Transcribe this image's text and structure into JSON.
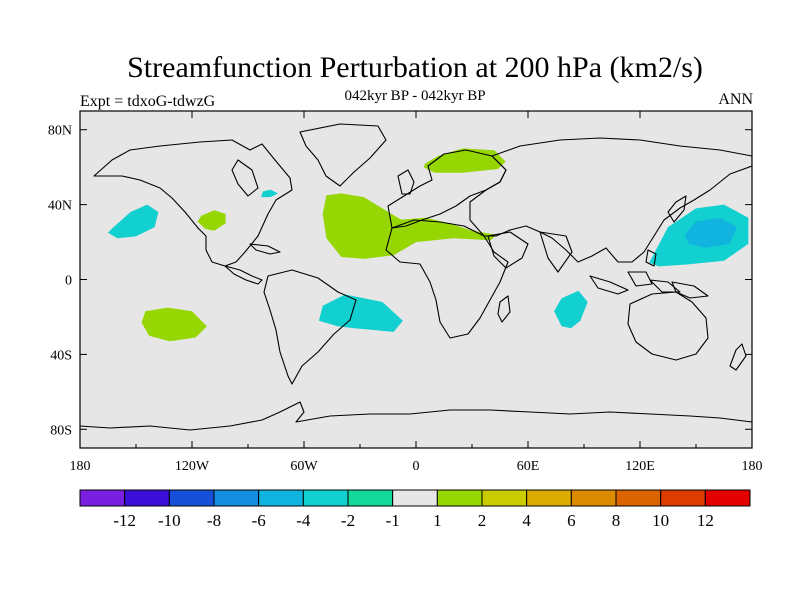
{
  "title": "Streamfunction Perturbation at 200 hPa (km2/s)",
  "subtitle": "042kyr BP - 042kyr BP",
  "left_string": "Expt = tdxoG-tdwzG",
  "right_string": "ANN",
  "map": {
    "projection": "cylindrical-equidistant",
    "lon_range": [
      -180,
      180
    ],
    "lat_range": [
      -90,
      90
    ],
    "lon_ticks": [
      {
        "value": -180,
        "label": "180"
      },
      {
        "value": -120,
        "label": "120W"
      },
      {
        "value": -60,
        "label": "60W"
      },
      {
        "value": 0,
        "label": "0"
      },
      {
        "value": 60,
        "label": "60E"
      },
      {
        "value": 120,
        "label": "120E"
      },
      {
        "value": 180,
        "label": "180"
      }
    ],
    "lat_ticks": [
      {
        "value": 80,
        "label": "80N"
      },
      {
        "value": 40,
        "label": "40N"
      },
      {
        "value": 0,
        "label": "0"
      },
      {
        "value": -40,
        "label": "40S"
      },
      {
        "value": -80,
        "label": "80S"
      }
    ],
    "background_color": "#e6e6e6",
    "coastline_color": "#000000",
    "regions": [
      {
        "level": 2,
        "lon": [
          [
            -48,
            45
          ],
          [
            -40,
            46
          ],
          [
            -28,
            44
          ],
          [
            -18,
            38
          ],
          [
            -8,
            32
          ],
          [
            5,
            33
          ],
          [
            18,
            30
          ],
          [
            30,
            26
          ],
          [
            43,
            24
          ],
          [
            40,
            21
          ],
          [
            20,
            22
          ],
          [
            0,
            20
          ],
          [
            -12,
            13
          ],
          [
            -28,
            11
          ],
          [
            -40,
            12
          ],
          [
            -48,
            22
          ],
          [
            -50,
            35
          ]
        ]
      },
      {
        "level": 2,
        "lon": [
          [
            5,
            62
          ],
          [
            12,
            66
          ],
          [
            25,
            70
          ],
          [
            42,
            69
          ],
          [
            48,
            63
          ],
          [
            44,
            59
          ],
          [
            25,
            57
          ],
          [
            10,
            57
          ],
          [
            4,
            60
          ]
        ]
      },
      {
        "level": 2,
        "lon": [
          [
            -115,
            34
          ],
          [
            -108,
            37
          ],
          [
            -102,
            35
          ],
          [
            -102,
            30
          ],
          [
            -108,
            26
          ],
          [
            -113,
            27
          ],
          [
            -117,
            31
          ]
        ]
      },
      {
        "level": 2,
        "lon": [
          [
            -145,
            -17
          ],
          [
            -133,
            -15
          ],
          [
            -120,
            -17
          ],
          [
            -112,
            -25
          ],
          [
            -118,
            -31
          ],
          [
            -132,
            -33
          ],
          [
            -143,
            -30
          ],
          [
            -147,
            -23
          ]
        ]
      },
      {
        "level": -2,
        "lon": [
          [
            -50,
            -14
          ],
          [
            -38,
            -8
          ],
          [
            -18,
            -12
          ],
          [
            -7,
            -22
          ],
          [
            -12,
            -28
          ],
          [
            -33,
            -26
          ],
          [
            -42,
            -25
          ],
          [
            -52,
            -22
          ]
        ]
      },
      {
        "level": -2,
        "lon": [
          [
            78,
            -10
          ],
          [
            87,
            -6
          ],
          [
            92,
            -12
          ],
          [
            88,
            -22
          ],
          [
            83,
            -26
          ],
          [
            78,
            -25
          ],
          [
            74,
            -17
          ]
        ]
      },
      {
        "level": -2,
        "lon": [
          [
            -163,
            27
          ],
          [
            -153,
            36
          ],
          [
            -144,
            40
          ],
          [
            -138,
            36
          ],
          [
            -140,
            28
          ],
          [
            -150,
            23
          ],
          [
            -160,
            22
          ],
          [
            -165,
            25
          ]
        ]
      },
      {
        "level": -2,
        "lon": [
          [
            125,
            9
          ],
          [
            135,
            28
          ],
          [
            150,
            38
          ],
          [
            165,
            40
          ],
          [
            178,
            33
          ],
          [
            178,
            19
          ],
          [
            165,
            10
          ],
          [
            145,
            8
          ],
          [
            130,
            7
          ]
        ]
      },
      {
        "level": -4,
        "lon": [
          [
            144,
            24
          ],
          [
            150,
            31
          ],
          [
            163,
            33
          ],
          [
            172,
            28
          ],
          [
            168,
            19
          ],
          [
            155,
            17
          ],
          [
            146,
            19
          ]
        ]
      },
      {
        "level": -2,
        "lon": [
          [
            -82,
            47
          ],
          [
            -78,
            48
          ],
          [
            -74,
            46
          ],
          [
            -78,
            44
          ],
          [
            -83,
            44
          ]
        ]
      }
    ]
  },
  "colorbar": {
    "colors": [
      "#7a1fe0",
      "#3a10d8",
      "#1650d8",
      "#148ce0",
      "#10b4de",
      "#12d0d0",
      "#12d89a",
      "#e6e6e6",
      "#96d602",
      "#c8cc00",
      "#dcac00",
      "#dc8a00",
      "#dc6400",
      "#dc3c00",
      "#e20000"
    ],
    "labels": [
      "-12",
      "-10",
      "-8",
      "-6",
      "-4",
      "-2",
      "-1",
      "1",
      "2",
      "4",
      "6",
      "8",
      "10",
      "12"
    ]
  }
}
